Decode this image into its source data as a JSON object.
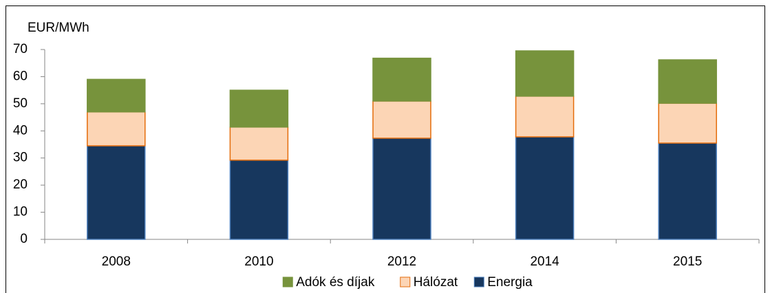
{
  "chart_data": {
    "type": "stacked_bar",
    "y_label": "EUR/MWh",
    "categories": [
      "2008",
      "2010",
      "2012",
      "2014",
      "2015"
    ],
    "series": [
      {
        "name": "Energia",
        "color": "#17375e",
        "values": [
          34.5,
          29.2,
          37.3,
          37.8,
          35.5
        ]
      },
      {
        "name": "Hálózat",
        "color": "#fcd5b5",
        "values": [
          12.5,
          12.2,
          13.7,
          15.0,
          14.7
        ]
      },
      {
        "name": "Adók és díjak",
        "color": "#77933c",
        "values": [
          12.0,
          13.6,
          15.8,
          16.7,
          16.0
        ]
      }
    ],
    "ylim": [
      0,
      70
    ],
    "yticks": [
      0,
      10,
      20,
      30,
      40,
      50,
      60,
      70
    ],
    "grid": false,
    "legend": "bottom"
  }
}
